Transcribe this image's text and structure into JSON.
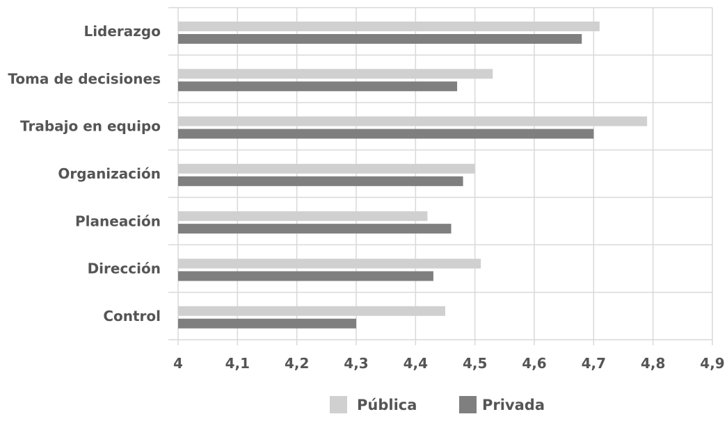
{
  "chart_data": {
    "type": "bar",
    "orientation": "horizontal",
    "categories": [
      "Liderazgo",
      "Toma de decisiones",
      "Trabajo en equipo",
      "Organización",
      "Planeación",
      "Dirección",
      "Control"
    ],
    "series": [
      {
        "name": "Pública",
        "color": "#d0d0d0",
        "values": [
          4.71,
          4.53,
          4.79,
          4.5,
          4.42,
          4.51,
          4.45
        ]
      },
      {
        "name": "Privada",
        "color": "#7f7f7f",
        "values": [
          4.68,
          4.47,
          4.7,
          4.48,
          4.46,
          4.43,
          4.3
        ]
      }
    ],
    "x_ticks": [
      "4",
      "4,1",
      "4,2",
      "4,3",
      "4,4",
      "4,5",
      "4,6",
      "4,7",
      "4,8",
      "4,9"
    ],
    "xlim": [
      4,
      4.9
    ],
    "grid": "vertical and horizontal",
    "legend_position": "bottom"
  }
}
